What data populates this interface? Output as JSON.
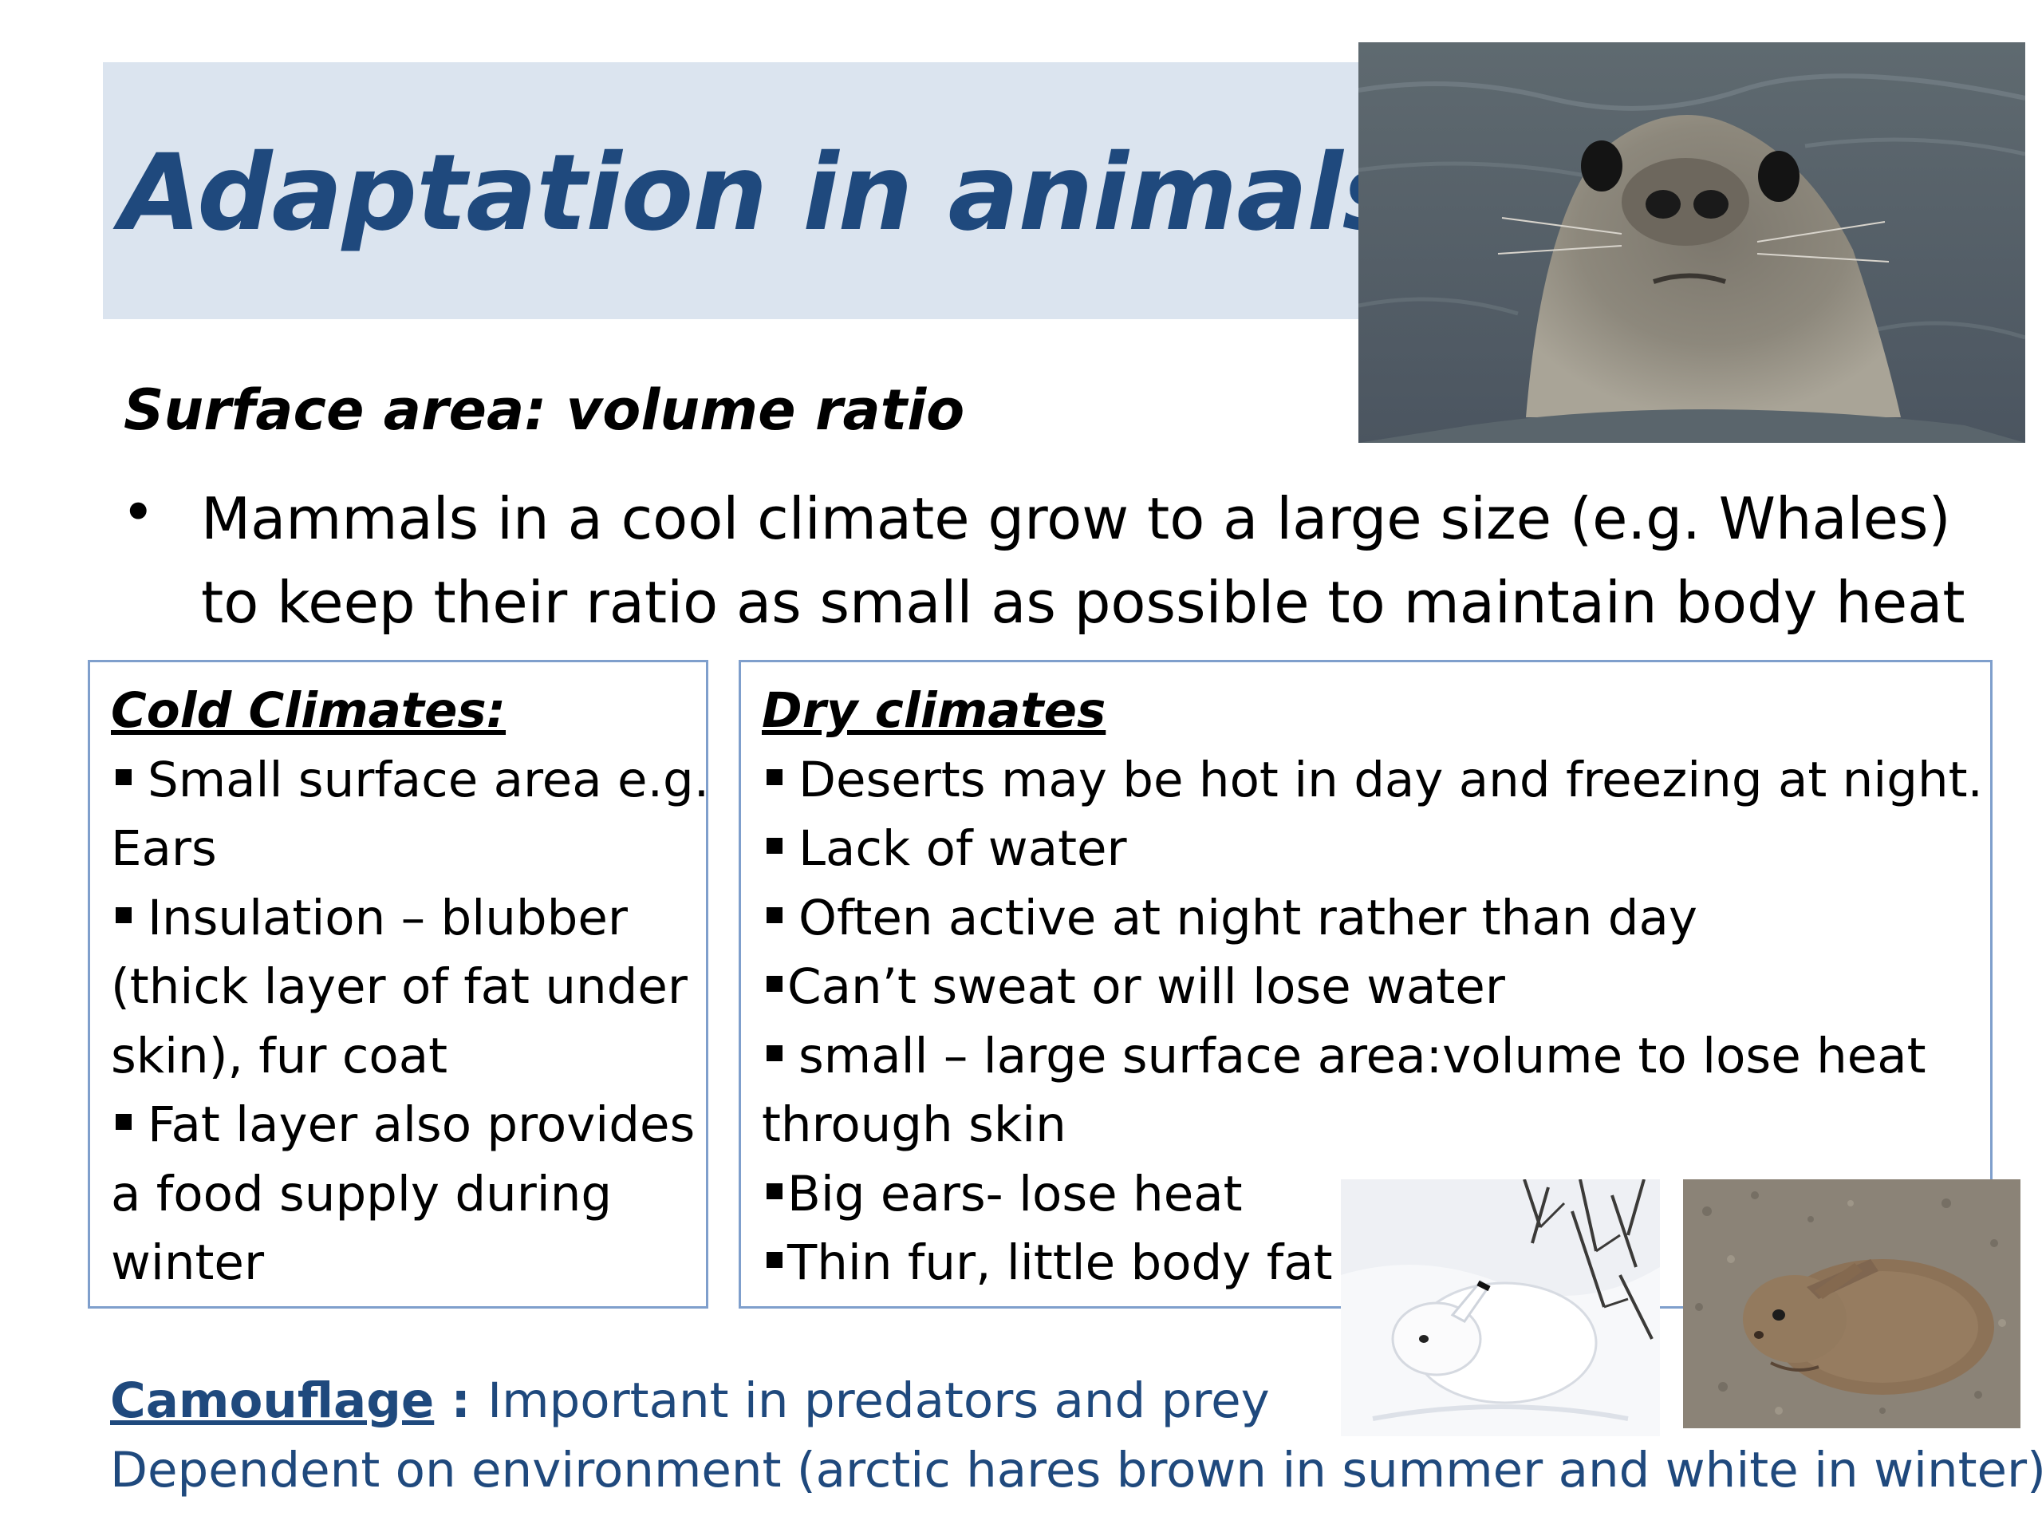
{
  "slide": {
    "title": "Adaptation in animals",
    "subtitle": "Surface area: volume ratio",
    "bullet_symbol": "•",
    "bullet_line_1": "Mammals in a cool climate grow to a large size (e.g. Whales)",
    "bullet_line_2": "to keep their ratio as small as possible to maintain body heat"
  },
  "cold_box": {
    "heading": "Cold Climates:",
    "lines": [
      "Small surface area e.g.",
      "Ears",
      "Insulation – blubber",
      "(thick layer of fat under",
      "skin), fur coat",
      "Fat layer also provides",
      "a food supply during",
      "winter"
    ]
  },
  "dry_box": {
    "heading": "Dry climates",
    "lines": [
      "Deserts may be hot in day and freezing at night.",
      "Lack of water",
      "Often active at night rather than day",
      "Can’t sweat or will lose water",
      "small – large surface area:volume to lose heat",
      "through skin",
      "Big ears- lose heat",
      "Thin fur, little body fat"
    ]
  },
  "camouflage": {
    "heading": "Camouflage",
    "separator": " : ",
    "line_1": "Important in predators and prey",
    "line_2": "Dependent on environment (arctic hares brown in summer and white in winter)"
  },
  "images": {
    "seal": "seal-head-photo",
    "hare_white": "white-arctic-hare-photo",
    "hare_brown": "brown-hare-photo"
  },
  "colors": {
    "title_band": "#dbe4ef",
    "title_text": "#1f497d",
    "box_border": "#7f9fcc",
    "camouflage_text": "#1f497d"
  }
}
